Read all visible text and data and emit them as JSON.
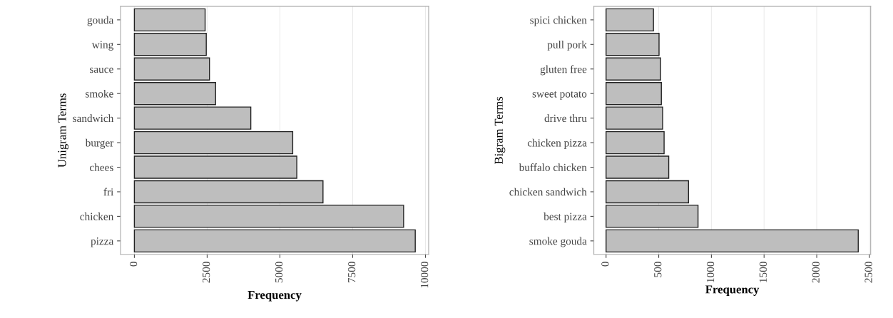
{
  "chart_data": [
    {
      "type": "bar",
      "orientation": "horizontal",
      "xlabel": "Frequency",
      "ylabel": "Unigram Terms",
      "categories": [
        "gouda",
        "wing",
        "sauce",
        "smoke",
        "sandwich",
        "burger",
        "chees",
        "fri",
        "chicken",
        "pizza"
      ],
      "values": [
        2430,
        2470,
        2580,
        2790,
        4000,
        5440,
        5580,
        6480,
        9250,
        9650
      ],
      "color": "#bebebe",
      "xlim": [
        -475,
        10110
      ],
      "xticks": [
        0,
        2500,
        5000,
        7500,
        10000
      ],
      "grid": "x"
    },
    {
      "type": "bar",
      "orientation": "horizontal",
      "xlabel": "Frequency",
      "ylabel": "Bigram Terms",
      "categories": [
        "spici chicken",
        "pull pork",
        "gluten free",
        "sweet potato",
        "drive thru",
        "chicken pizza",
        "buffalo chicken",
        "chicken sandwich",
        "best pizza",
        "smoke gouda"
      ],
      "values": [
        450,
        503,
        517,
        525,
        537,
        551,
        595,
        783,
        873,
        2394
      ],
      "color": "#bebebe",
      "xlim": [
        -116,
        2512
      ],
      "xticks": [
        0,
        500,
        1000,
        1500,
        2000,
        2500
      ],
      "grid": "x"
    }
  ]
}
